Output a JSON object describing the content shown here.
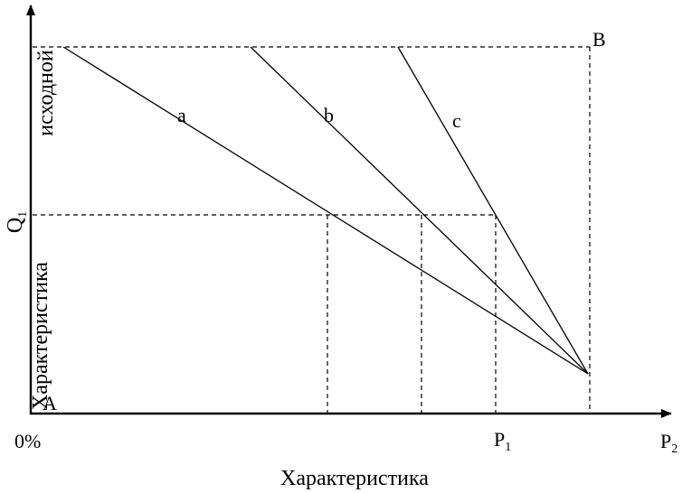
{
  "labels": {
    "point_b": "B",
    "line_a": "a",
    "line_b": "b",
    "line_c": "c",
    "q1_main": "Q",
    "q1_sub": "1",
    "y_axis_top": "исходной",
    "y_axis_bottom": "Характеристика",
    "origin_point": "A",
    "origin": "0%",
    "p1_main": "P",
    "p1_sub": "1",
    "p2_main": "P",
    "p2_sub": "2",
    "x_axis": "Характеристика"
  },
  "colors": {
    "ink": "#000000",
    "background": "#ffffff"
  }
}
